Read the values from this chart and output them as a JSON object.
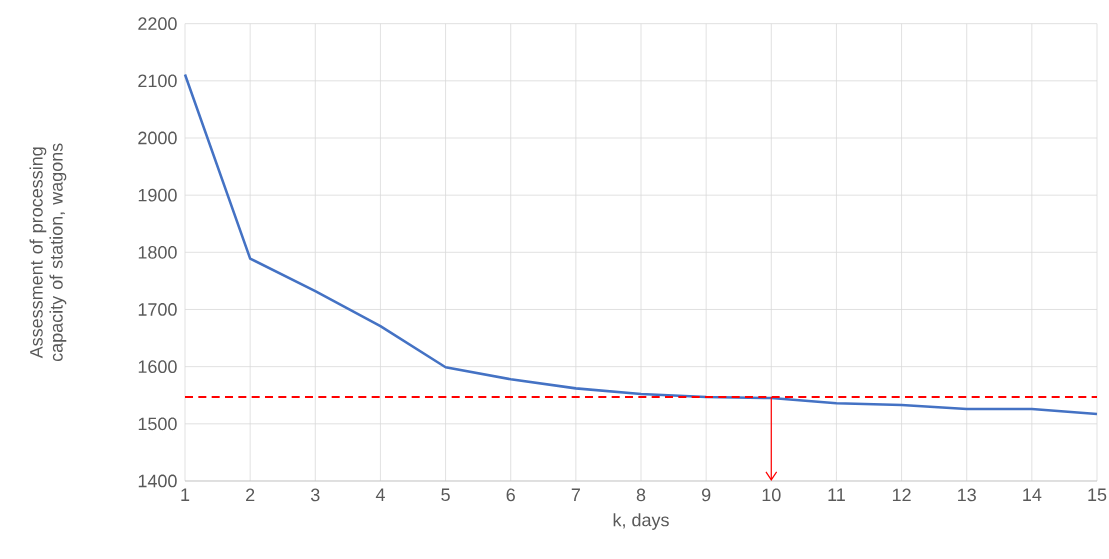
{
  "chart_data": {
    "type": "line",
    "xlabel": "k, days",
    "ylabel": "Assessment of processing capacity of station, wagons",
    "x": [
      1,
      2,
      3,
      4,
      5,
      6,
      7,
      8,
      9,
      10,
      11,
      12,
      13,
      14,
      15
    ],
    "series": [
      {
        "color": "#4472c4",
        "values": [
          2111,
          1789,
          1732,
          1671,
          1599,
          1578,
          1562,
          1552,
          1547,
          1545,
          1536,
          1533,
          1526,
          1526,
          1517
        ]
      }
    ],
    "xlim": [
      1,
      15
    ],
    "xticks": [
      1,
      2,
      3,
      4,
      5,
      6,
      7,
      8,
      9,
      10,
      11,
      12,
      13,
      14,
      15
    ],
    "ylim": [
      1400,
      2200
    ],
    "yticks": [
      1400,
      1500,
      1600,
      1700,
      1800,
      1900,
      2000,
      2100,
      2200
    ],
    "grid": true,
    "marker": "none",
    "line_style": "solid",
    "ref_lines": [
      {
        "axis": "y",
        "value": 1547,
        "color": "#ff0000",
        "line_style": "dashed"
      },
      {
        "axis": "x",
        "value": 10,
        "color": "#ff0000",
        "line_style": "solid"
      }
    ]
  }
}
